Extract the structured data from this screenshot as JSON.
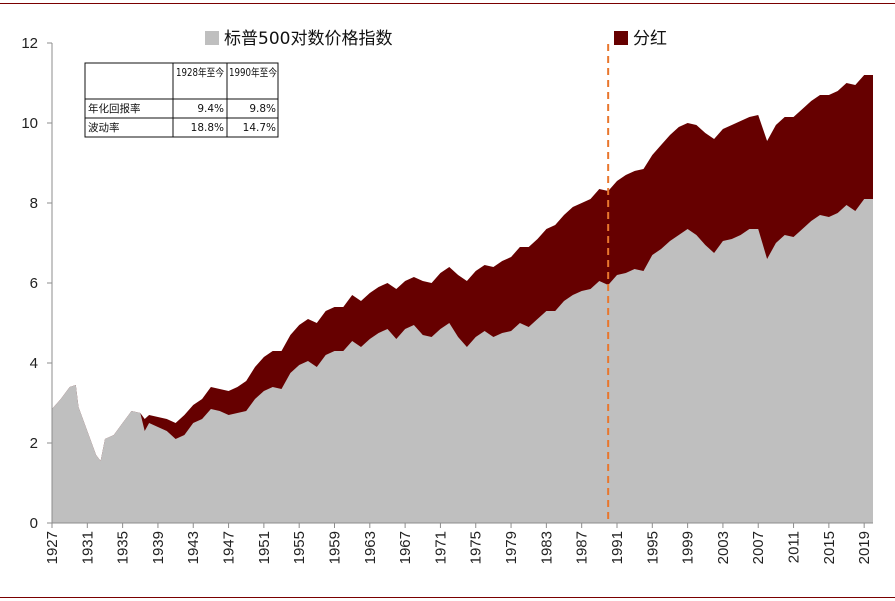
{
  "chart_data": {
    "type": "area",
    "title": "",
    "xlabel": "",
    "ylabel": "",
    "ylim": [
      0,
      12
    ],
    "y_ticks": [
      "0",
      "2",
      "4",
      "6",
      "8",
      "10",
      "12"
    ],
    "x_tick_labels": [
      "1927",
      "1931",
      "1935",
      "1939",
      "1943",
      "1947",
      "1951",
      "1955",
      "1959",
      "1963",
      "1967",
      "1971",
      "1975",
      "1979",
      "1983",
      "1987",
      "1991",
      "1995",
      "1999",
      "2003",
      "2007",
      "2011",
      "2015",
      "2019"
    ],
    "xlim": [
      1927,
      2020
    ],
    "legend_placement": "top",
    "grid": false,
    "reference_line": {
      "x": 1990,
      "style": "dashed",
      "color": "#e8762d"
    },
    "series": [
      {
        "name": "标普500对数价格指数",
        "color": "#bfbfbf",
        "x": [
          1927,
          1928,
          1929,
          1929.7,
          1930,
          1931,
          1932,
          1932.5,
          1933,
          1934,
          1935,
          1936,
          1937,
          1937.5,
          1938,
          1939,
          1940,
          1941,
          1942,
          1943,
          1944,
          1945,
          1946,
          1947,
          1948,
          1949,
          1950,
          1951,
          1952,
          1953,
          1954,
          1955,
          1956,
          1957,
          1958,
          1959,
          1960,
          1961,
          1962,
          1963,
          1964,
          1965,
          1966,
          1967,
          1968,
          1969,
          1970,
          1971,
          1972,
          1973,
          1974,
          1975,
          1976,
          1977,
          1978,
          1979,
          1980,
          1981,
          1982,
          1983,
          1984,
          1985,
          1986,
          1987,
          1988,
          1989,
          1990,
          1991,
          1992,
          1993,
          1994,
          1995,
          1996,
          1997,
          1998,
          1999,
          2000,
          2001,
          2002,
          2003,
          2004,
          2005,
          2006,
          2007,
          2008,
          2009,
          2010,
          2011,
          2012,
          2013,
          2014,
          2015,
          2016,
          2017,
          2018,
          2019,
          2020
        ],
        "values": [
          2.85,
          3.1,
          3.4,
          3.45,
          2.9,
          2.3,
          1.7,
          1.55,
          2.1,
          2.2,
          2.5,
          2.8,
          2.75,
          2.3,
          2.5,
          2.4,
          2.3,
          2.1,
          2.2,
          2.5,
          2.6,
          2.85,
          2.8,
          2.7,
          2.75,
          2.8,
          3.1,
          3.3,
          3.4,
          3.35,
          3.75,
          3.95,
          4.05,
          3.9,
          4.2,
          4.3,
          4.3,
          4.55,
          4.4,
          4.6,
          4.75,
          4.85,
          4.6,
          4.85,
          4.95,
          4.7,
          4.65,
          4.85,
          5.0,
          4.65,
          4.4,
          4.65,
          4.8,
          4.65,
          4.75,
          4.8,
          5.0,
          4.9,
          5.1,
          5.3,
          5.3,
          5.55,
          5.7,
          5.8,
          5.85,
          6.05,
          5.95,
          6.2,
          6.25,
          6.35,
          6.3,
          6.7,
          6.85,
          7.05,
          7.2,
          7.35,
          7.2,
          6.95,
          6.75,
          7.05,
          7.1,
          7.2,
          7.35,
          7.35,
          6.6,
          7.0,
          7.2,
          7.15,
          7.35,
          7.55,
          7.7,
          7.65,
          7.75,
          7.95,
          7.8,
          8.1,
          8.1
        ]
      },
      {
        "name": "分红",
        "color": "#660000",
        "x": [
          1927,
          1928,
          1929,
          1929.7,
          1930,
          1931,
          1932,
          1932.5,
          1933,
          1934,
          1935,
          1936,
          1937,
          1937.5,
          1938,
          1939,
          1940,
          1941,
          1942,
          1943,
          1944,
          1945,
          1946,
          1947,
          1948,
          1949,
          1950,
          1951,
          1952,
          1953,
          1954,
          1955,
          1956,
          1957,
          1958,
          1959,
          1960,
          1961,
          1962,
          1963,
          1964,
          1965,
          1966,
          1967,
          1968,
          1969,
          1970,
          1971,
          1972,
          1973,
          1974,
          1975,
          1976,
          1977,
          1978,
          1979,
          1980,
          1981,
          1982,
          1983,
          1984,
          1985,
          1986,
          1987,
          1988,
          1989,
          1990,
          1991,
          1992,
          1993,
          1994,
          1995,
          1996,
          1997,
          1998,
          1999,
          2000,
          2001,
          2002,
          2003,
          2004,
          2005,
          2006,
          2007,
          2008,
          2009,
          2010,
          2011,
          2012,
          2013,
          2014,
          2015,
          2016,
          2017,
          2018,
          2019,
          2020
        ],
        "values": [
          2.85,
          3.1,
          3.4,
          3.45,
          2.9,
          2.3,
          1.7,
          1.55,
          2.1,
          2.2,
          2.5,
          2.8,
          2.75,
          2.6,
          2.7,
          2.65,
          2.6,
          2.5,
          2.7,
          2.95,
          3.1,
          3.4,
          3.35,
          3.3,
          3.4,
          3.55,
          3.9,
          4.15,
          4.3,
          4.3,
          4.7,
          4.95,
          5.1,
          5.0,
          5.3,
          5.4,
          5.4,
          5.7,
          5.55,
          5.75,
          5.9,
          6.0,
          5.85,
          6.05,
          6.15,
          6.05,
          6.0,
          6.25,
          6.4,
          6.2,
          6.05,
          6.3,
          6.45,
          6.4,
          6.55,
          6.65,
          6.9,
          6.9,
          7.1,
          7.35,
          7.45,
          7.7,
          7.9,
          8.0,
          8.1,
          8.35,
          8.3,
          8.55,
          8.7,
          8.8,
          8.85,
          9.2,
          9.45,
          9.7,
          9.9,
          10.0,
          9.95,
          9.75,
          9.6,
          9.85,
          9.95,
          10.05,
          10.15,
          10.2,
          9.55,
          9.95,
          10.15,
          10.15,
          10.35,
          10.55,
          10.7,
          10.7,
          10.8,
          11.0,
          10.95,
          11.2,
          11.2
        ]
      }
    ],
    "table": {
      "columns": [
        "",
        "1928年至今",
        "1990年至今"
      ],
      "rows": [
        {
          "label": "年化回报率",
          "values": [
            "9.4%",
            "9.8%"
          ]
        },
        {
          "label": "波动率",
          "values": [
            "18.8%",
            "14.7%"
          ]
        }
      ]
    }
  }
}
